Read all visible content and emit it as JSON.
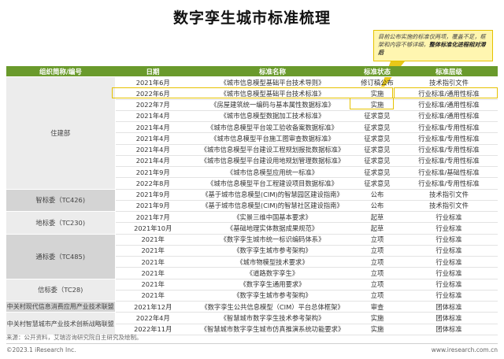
{
  "title": "数字孪生城市标准梳理",
  "callout": {
    "text": "目前公布实施的标准仅两项，覆盖不足，框架和内容不够详细，",
    "bold": "整体标准化进程相对滞后"
  },
  "table": {
    "headers": [
      "组织简称/编号",
      "日期",
      "标准名称",
      "标准状态",
      "标准层级"
    ],
    "groups": [
      {
        "org": "住建部",
        "rows": [
          [
            "2021年6月",
            "《城市信息模型基础平台技术导则》",
            "修订稿公布",
            "技术指引文件"
          ],
          [
            "2022年6月",
            "《城市信息模型基础平台技术标准》",
            "实施",
            "行业标准/通用性标准"
          ],
          [
            "2022年7月",
            "《房屋建筑统一编码与基本属性数据标准》",
            "实施",
            "行业标准/通用性标准"
          ],
          [
            "2021年4月",
            "《城市信息模型数据加工技术标准》",
            "征求意见",
            "行业标准/通用性标准"
          ],
          [
            "2021年4月",
            "《城市信息模型平台竣工验收备案数据标准》",
            "征求意见",
            "行业标准/专用性标准"
          ],
          [
            "2021年4月",
            "《城市信息模型平台施工图审查数据标准》",
            "征求意见",
            "行业标准/专用性标准"
          ],
          [
            "2021年4月",
            "《城市信息模型平台建设工程规划报批数据标准》",
            "征求意见",
            "行业标准/专用性标准"
          ],
          [
            "2021年4月",
            "《城市信息模型平台建设用地规划管理数据标准》",
            "征求意见",
            "行业标准/专用性标准"
          ],
          [
            "2021年9月",
            "《城市信息模型应用统一标准》",
            "征求意见",
            "行业标准/基础性标准"
          ],
          [
            "2022年8月",
            "《城市信息模型平台工程建设项目数据标准》",
            "征求意见",
            "行业标准/专用性标准"
          ]
        ]
      },
      {
        "org": "智标委（TC426)",
        "rows": [
          [
            "2021年9月",
            "《基于城市信息模型(CIM)的智慧园区建设指南》",
            "公布",
            "技术指引文件"
          ],
          [
            "2021年9月",
            "《基于城市信息模型(CIM)的智慧社区建设指南》",
            "公布",
            "技术指引文件"
          ]
        ]
      },
      {
        "org": "地标委（TC230)",
        "rows": [
          [
            "2021年7月",
            "《实景三维中国基本要求》",
            "起草",
            "行业标准"
          ],
          [
            "2021年10月",
            "《基础地理实体数据成果规范》",
            "起草",
            "行业标准"
          ]
        ]
      },
      {
        "org": "通标委（TC485)",
        "rows": [
          [
            "2021年",
            "《数字孪生城市统一标识编码体系》",
            "立项",
            "行业标准"
          ],
          [
            "2021年",
            "《数字孪生城市参考架构》",
            "立项",
            "行业标准"
          ],
          [
            "2021年",
            "《城市物模型技术要求》",
            "立项",
            "行业标准"
          ],
          [
            "2021年",
            "《道路数字孪生》",
            "立项",
            "行业标准"
          ]
        ]
      },
      {
        "org": "信标委（TC28)",
        "rows": [
          [
            "2021年",
            "《数字孪生通用要求》",
            "立项",
            "行业标准"
          ],
          [
            "2021年",
            "《数字孪生城市参考架构》",
            "立项",
            "行业标准"
          ]
        ]
      },
      {
        "org": "中关村现代信息消费应用产业技术联盟",
        "rows": [
          [
            "2021年12月",
            "《数字孪生公共信息模型（CIM）平台总体框架》",
            "审查",
            "团体标准"
          ]
        ]
      },
      {
        "org": "中关村智慧城市产业技术创新战略联盟",
        "rows": [
          [
            "2022年4月",
            "《智慧城市数字孪生技术参考架构》",
            "实施",
            "团体标准"
          ],
          [
            "2022年11月",
            "《智慧城市数字孪生城市仿真推演系统功能要求》",
            "实施",
            "团体标准"
          ]
        ]
      }
    ]
  },
  "footnote": "来源：公开资料，艾瑞咨询研究院自主研究及绘制。",
  "copyright": "©2023.1 iResearch Inc.",
  "website": "www.iresearch.com.cn",
  "colors": {
    "header": "#6a9a2c",
    "highlight": "#e6c200",
    "callout_bg": "#fff6b0"
  }
}
